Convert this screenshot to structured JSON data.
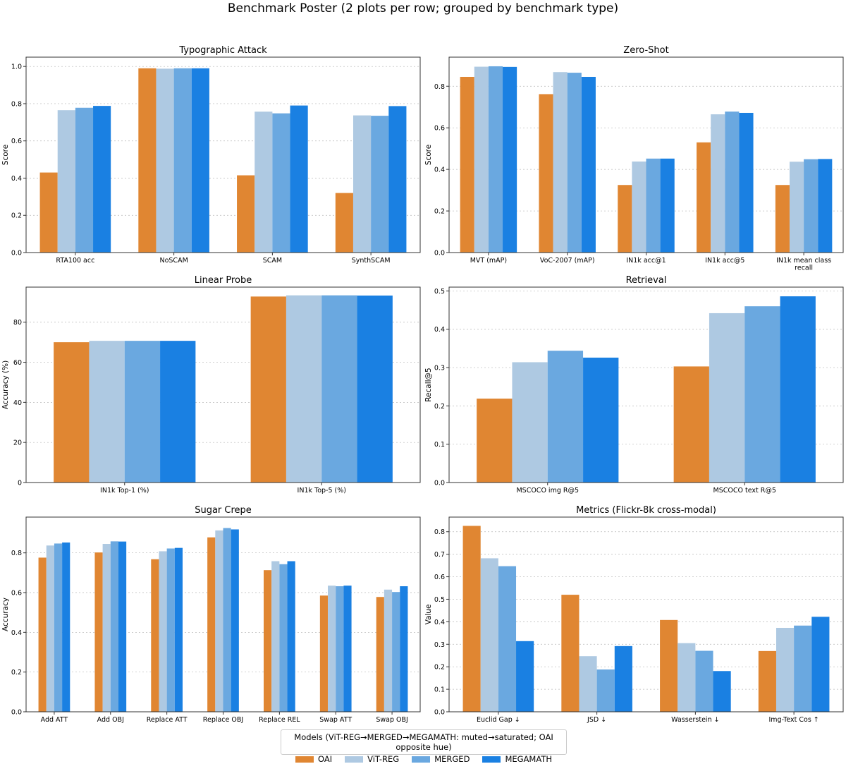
{
  "title": "Benchmark Poster (2 plots per row; grouped by benchmark type)",
  "legend": {
    "title": "Models (ViT-REG→MERGED→MEGAMATH: muted→saturated; OAI opposite hue)",
    "items": [
      {
        "name": "OAI",
        "color": "#e08632"
      },
      {
        "name": "ViT-REG",
        "color": "#aec9e2"
      },
      {
        "name": "MERGED",
        "color": "#6aa8e0"
      },
      {
        "name": "MEGAMATH",
        "color": "#1a80e2"
      }
    ]
  },
  "chart_data": [
    {
      "type": "bar",
      "title": "Typographic Attack",
      "ylabel": "Score",
      "xlabel": "",
      "ylim": [
        0,
        1.05
      ],
      "yticks": [
        "0.0",
        "0.2",
        "0.4",
        "0.6",
        "0.8",
        "1.0"
      ],
      "categories": [
        [
          "RTA100 acc"
        ],
        [
          "NoSCAM"
        ],
        [
          "SCAM"
        ],
        [
          "SynthSCAM"
        ]
      ],
      "series": [
        {
          "name": "OAI",
          "values": [
            0.43,
            0.99,
            0.415,
            0.32
          ]
        },
        {
          "name": "ViT-REG",
          "values": [
            0.765,
            0.988,
            0.757,
            0.737
          ]
        },
        {
          "name": "MERGED",
          "values": [
            0.778,
            0.99,
            0.748,
            0.735
          ]
        },
        {
          "name": "MEGAMATH",
          "values": [
            0.788,
            0.99,
            0.79,
            0.787
          ]
        }
      ]
    },
    {
      "type": "bar",
      "title": "Zero-Shot",
      "ylabel": "Score",
      "xlabel": "",
      "ylim": [
        0,
        0.94
      ],
      "yticks": [
        "0.0",
        "0.2",
        "0.4",
        "0.6",
        "0.8"
      ],
      "categories": [
        [
          "MVT (mAP)"
        ],
        [
          "VoC-2007 (mAP)"
        ],
        [
          "IN1k acc@1"
        ],
        [
          "IN1k acc@5"
        ],
        [
          "IN1k mean class",
          "recall"
        ]
      ],
      "series": [
        {
          "name": "OAI",
          "values": [
            0.845,
            0.762,
            0.325,
            0.53,
            0.325
          ]
        },
        {
          "name": "ViT-REG",
          "values": [
            0.894,
            0.868,
            0.438,
            0.665,
            0.437
          ]
        },
        {
          "name": "MERGED",
          "values": [
            0.896,
            0.865,
            0.452,
            0.678,
            0.449
          ]
        },
        {
          "name": "MEGAMATH",
          "values": [
            0.893,
            0.845,
            0.452,
            0.672,
            0.45
          ]
        }
      ]
    },
    {
      "type": "bar",
      "title": "Linear Probe",
      "ylabel": "Accuracy (%)",
      "xlabel": "",
      "ylim": [
        0,
        97.5
      ],
      "yticks": [
        "0",
        "20",
        "40",
        "60",
        "80"
      ],
      "categories": [
        [
          "IN1k Top-1 (%)"
        ],
        [
          "IN1k Top-5 (%)"
        ]
      ],
      "series": [
        {
          "name": "OAI",
          "values": [
            70.0,
            92.8
          ]
        },
        {
          "name": "ViT-REG",
          "values": [
            70.7,
            93.4
          ]
        },
        {
          "name": "MERGED",
          "values": [
            70.7,
            93.4
          ]
        },
        {
          "name": "MEGAMATH",
          "values": [
            70.7,
            93.3
          ]
        }
      ]
    },
    {
      "type": "bar",
      "title": "Retrieval",
      "ylabel": "Recall@5",
      "xlabel": "",
      "ylim": [
        0,
        0.51
      ],
      "yticks": [
        "0.0",
        "0.1",
        "0.2",
        "0.3",
        "0.4",
        "0.5"
      ],
      "categories": [
        [
          "MSCOCO img R@5"
        ],
        [
          "MSCOCO text R@5"
        ]
      ],
      "series": [
        {
          "name": "OAI",
          "values": [
            0.219,
            0.303
          ]
        },
        {
          "name": "ViT-REG",
          "values": [
            0.314,
            0.442
          ]
        },
        {
          "name": "MERGED",
          "values": [
            0.344,
            0.46
          ]
        },
        {
          "name": "MEGAMATH",
          "values": [
            0.326,
            0.486
          ]
        }
      ]
    },
    {
      "type": "bar",
      "title": "Sugar Crepe",
      "ylabel": "Accuracy",
      "xlabel": "",
      "ylim": [
        0,
        0.98
      ],
      "yticks": [
        "0.0",
        "0.2",
        "0.4",
        "0.6",
        "0.8"
      ],
      "categories": [
        [
          "Add ATT"
        ],
        [
          "Add OBJ"
        ],
        [
          "Replace ATT"
        ],
        [
          "Replace OBJ"
        ],
        [
          "Replace REL"
        ],
        [
          "Swap ATT"
        ],
        [
          "Swap OBJ"
        ]
      ],
      "series": [
        {
          "name": "OAI",
          "values": [
            0.776,
            0.802,
            0.768,
            0.878,
            0.713,
            0.585,
            0.578
          ]
        },
        {
          "name": "ViT-REG",
          "values": [
            0.837,
            0.845,
            0.808,
            0.913,
            0.758,
            0.635,
            0.615
          ]
        },
        {
          "name": "MERGED",
          "values": [
            0.847,
            0.858,
            0.822,
            0.925,
            0.743,
            0.632,
            0.603
          ]
        },
        {
          "name": "MEGAMATH",
          "values": [
            0.852,
            0.857,
            0.825,
            0.918,
            0.758,
            0.635,
            0.632
          ]
        }
      ]
    },
    {
      "type": "bar",
      "title": "Metrics (Flickr-8k cross-modal)",
      "ylabel": "Value",
      "xlabel": "",
      "ylim": [
        0,
        0.865
      ],
      "yticks": [
        "0.0",
        "0.1",
        "0.2",
        "0.3",
        "0.4",
        "0.5",
        "0.6",
        "0.7",
        "0.8"
      ],
      "categories": [
        [
          "Euclid Gap ↓"
        ],
        [
          "JSD ↓"
        ],
        [
          "Wasserstein ↓"
        ],
        [
          "Img-Text Cos ↑"
        ]
      ],
      "series": [
        {
          "name": "OAI",
          "values": [
            0.826,
            0.52,
            0.408,
            0.27
          ]
        },
        {
          "name": "ViT-REG",
          "values": [
            0.682,
            0.247,
            0.305,
            0.373
          ]
        },
        {
          "name": "MERGED",
          "values": [
            0.647,
            0.188,
            0.271,
            0.383
          ]
        },
        {
          "name": "MEGAMATH",
          "values": [
            0.314,
            0.292,
            0.181,
            0.422
          ]
        }
      ]
    }
  ]
}
